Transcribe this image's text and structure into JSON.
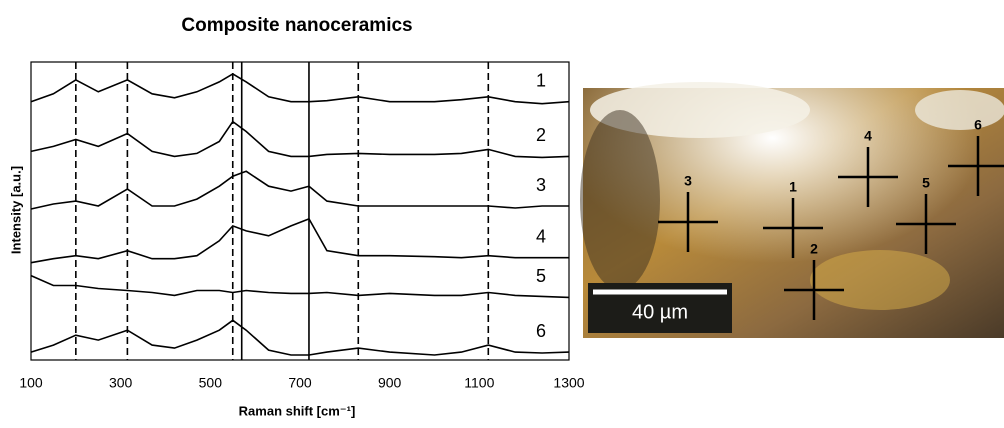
{
  "chart_data": {
    "type": "line",
    "title": "Composite nanoceramics",
    "x_label": "Raman shift [cm⁻¹]",
    "y_label": "Intensity [a.u.]",
    "xlim": [
      100,
      1300
    ],
    "xticks": [
      100,
      300,
      500,
      700,
      900,
      1100,
      1300
    ],
    "ylim": [
      0,
      300
    ],
    "x": [
      100,
      150,
      200,
      250,
      315,
      370,
      420,
      470,
      520,
      550,
      580,
      630,
      680,
      720,
      760,
      830,
      900,
      1000,
      1060,
      1120,
      1180,
      1240,
      1300
    ],
    "series": [
      {
        "name": "1",
        "color": "#000000",
        "values": [
          260,
          268,
          282,
          270,
          282,
          268,
          264,
          270,
          280,
          288,
          280,
          265,
          260,
          260,
          261,
          265,
          260,
          260,
          262,
          265,
          260,
          258,
          260
        ]
      },
      {
        "name": "2",
        "color": "#000000",
        "values": [
          210,
          215,
          222,
          215,
          228,
          210,
          205,
          208,
          220,
          240,
          230,
          210,
          205,
          205,
          207,
          208,
          207,
          207,
          208,
          212,
          205,
          204,
          205
        ]
      },
      {
        "name": "3",
        "color": "#000000",
        "values": [
          152,
          157,
          160,
          155,
          172,
          155,
          155,
          162,
          175,
          185,
          190,
          175,
          170,
          175,
          160,
          155,
          155,
          155,
          155,
          155,
          153,
          155,
          155
        ]
      },
      {
        "name": "4",
        "color": "#000000",
        "values": [
          98,
          102,
          105,
          102,
          110,
          102,
          102,
          105,
          120,
          135,
          130,
          125,
          135,
          142,
          110,
          105,
          105,
          104,
          103,
          105,
          103,
          103,
          103
        ]
      },
      {
        "name": "5",
        "color": "#000000",
        "values": [
          85,
          75,
          75,
          72,
          70,
          68,
          65,
          70,
          70,
          68,
          70,
          68,
          67,
          67,
          68,
          65,
          67,
          65,
          65,
          68,
          65,
          64,
          63
        ]
      },
      {
        "name": "6",
        "color": "#000000",
        "values": [
          8,
          15,
          25,
          20,
          30,
          15,
          12,
          20,
          30,
          40,
          30,
          10,
          5,
          5,
          8,
          12,
          8,
          5,
          8,
          15,
          8,
          7,
          8
        ]
      }
    ],
    "reference_lines": [
      {
        "x": 200,
        "style": "dashed"
      },
      {
        "x": 315,
        "style": "dashed"
      },
      {
        "x": 550,
        "style": "dashed"
      },
      {
        "x": 570,
        "style": "solid"
      },
      {
        "x": 720,
        "style": "solid"
      },
      {
        "x": 830,
        "style": "dashed"
      },
      {
        "x": 1120,
        "style": "dashed"
      }
    ]
  },
  "micrograph": {
    "points": [
      {
        "label": "1"
      },
      {
        "label": "2"
      },
      {
        "label": "3"
      },
      {
        "label": "4"
      },
      {
        "label": "5"
      },
      {
        "label": "6"
      }
    ],
    "scale_bar": "40 µm"
  }
}
